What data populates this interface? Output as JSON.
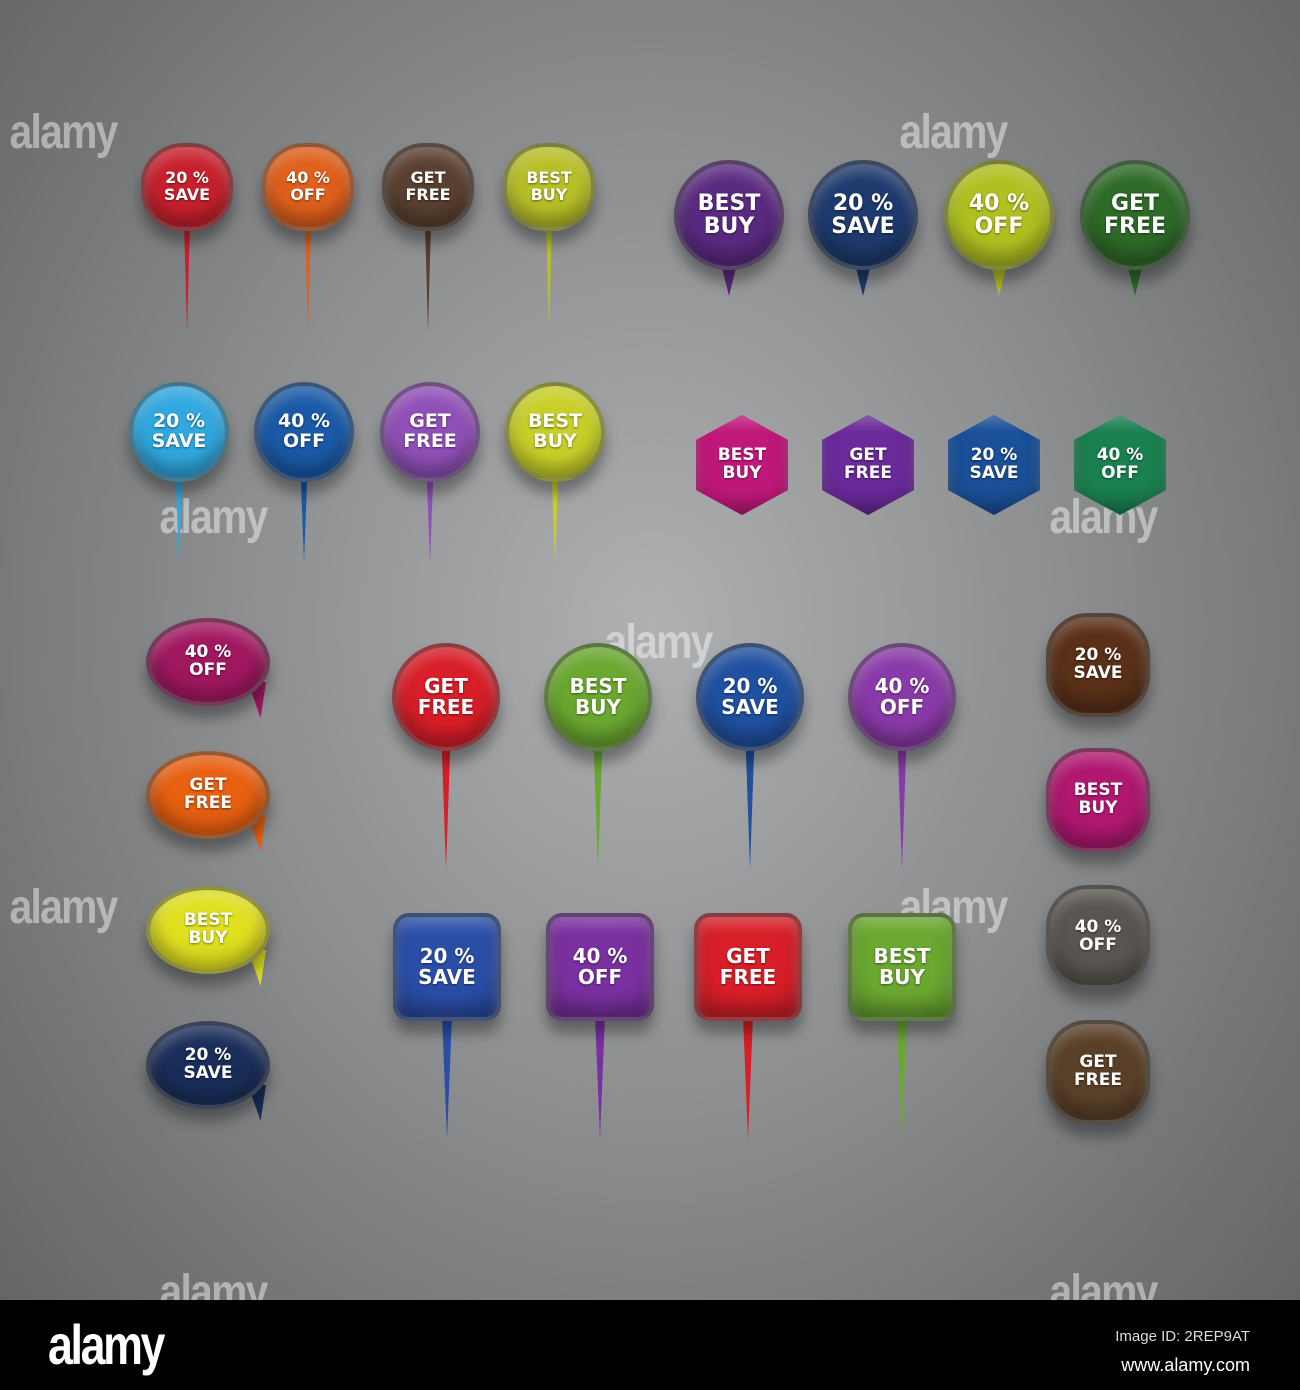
{
  "badges": [
    {
      "shape": "small-pin",
      "color": "#c8202c",
      "line1": "20 %",
      "line2": "SAVE"
    },
    {
      "shape": "small-pin",
      "color": "#e0601c",
      "line1": "40 %",
      "line2": "OFF"
    },
    {
      "shape": "small-pin",
      "color": "#5a4030",
      "line1": "GET",
      "line2": "FREE"
    },
    {
      "shape": "small-pin",
      "color": "#b8c028",
      "line1": "BEST",
      "line2": "BUY"
    },
    {
      "shape": "drop",
      "color": "#5a2a80",
      "line1": "BEST",
      "line2": "BUY"
    },
    {
      "shape": "drop",
      "color": "#1e3a6e",
      "line1": "20 %",
      "line2": "SAVE"
    },
    {
      "shape": "drop",
      "color": "#b0c020",
      "line1": "40 %",
      "line2": "OFF"
    },
    {
      "shape": "drop",
      "color": "#2e6a28",
      "line1": "GET",
      "line2": "FREE"
    },
    {
      "shape": "pin",
      "color": "#30a8e0",
      "line1": "20 %",
      "line2": "SAVE"
    },
    {
      "shape": "pin",
      "color": "#1a5aa8",
      "line1": "40 %",
      "line2": "OFF"
    },
    {
      "shape": "pin",
      "color": "#9050b8",
      "line1": "GET",
      "line2": "FREE"
    },
    {
      "shape": "pin",
      "color": "#c8d028",
      "line1": "BEST",
      "line2": "BUY"
    },
    {
      "shape": "hex",
      "color": "#c0187a",
      "line1": "BEST",
      "line2": "BUY"
    },
    {
      "shape": "hex",
      "color": "#6a2a9a",
      "line1": "GET",
      "line2": "FREE"
    },
    {
      "shape": "hex",
      "color": "#1a5098",
      "line1": "20 %",
      "line2": "SAVE"
    },
    {
      "shape": "hex",
      "color": "#1a8050",
      "line1": "40 %",
      "line2": "OFF"
    },
    {
      "shape": "bubble",
      "color": "#a01860",
      "line1": "40 %",
      "line2": "OFF"
    },
    {
      "shape": "bubble",
      "color": "#e86010",
      "line1": "GET",
      "line2": "FREE"
    },
    {
      "shape": "bubble",
      "color": "#e0e020",
      "line1": "BEST",
      "line2": "BUY"
    },
    {
      "shape": "bubble",
      "color": "#1a2e5a",
      "line1": "20 %",
      "line2": "SAVE"
    },
    {
      "shape": "big-pin",
      "color": "#d81e28",
      "line1": "GET",
      "line2": "FREE"
    },
    {
      "shape": "big-pin",
      "color": "#6aa830",
      "line1": "BEST",
      "line2": "BUY"
    },
    {
      "shape": "big-pin",
      "color": "#2050a0",
      "line1": "20 %",
      "line2": "SAVE"
    },
    {
      "shape": "big-pin",
      "color": "#8a3aa8",
      "line1": "40 %",
      "line2": "OFF"
    },
    {
      "shape": "square-pin",
      "color": "#2a4ea8",
      "line1": "20 %",
      "line2": "SAVE"
    },
    {
      "shape": "square-pin",
      "color": "#7a30a0",
      "line1": "40 %",
      "line2": "OFF"
    },
    {
      "shape": "square-pin",
      "color": "#d81e28",
      "line1": "GET",
      "line2": "FREE"
    },
    {
      "shape": "square-pin",
      "color": "#6aa830",
      "line1": "BEST",
      "line2": "BUY"
    },
    {
      "shape": "diamond",
      "color": "#5a3018",
      "line1": "20 %",
      "line2": "SAVE"
    },
    {
      "shape": "diamond",
      "color": "#b01870",
      "line1": "BEST",
      "line2": "BUY"
    },
    {
      "shape": "diamond",
      "color": "#5a5550",
      "line1": "40 %",
      "line2": "OFF"
    },
    {
      "shape": "diamond",
      "color": "#5a4028",
      "line1": "GET",
      "line2": "FREE"
    }
  ],
  "watermark": "alamy",
  "footer": {
    "logo": "alamy",
    "image_id": "Image ID: 2REP9AT",
    "site": "www.alamy.com"
  }
}
